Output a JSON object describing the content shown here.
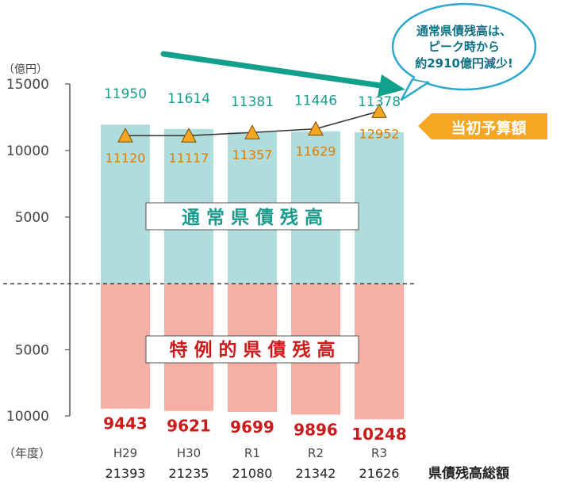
{
  "chart_data": {
    "type": "bar",
    "categories": [
      "H29",
      "H30",
      "R1",
      "R2",
      "R3"
    ],
    "axis_unit_label": "（億円）",
    "x_axis_label": "（年度）",
    "upper_ticks": [
      "15000",
      "10000",
      "5000"
    ],
    "lower_ticks": [
      "5000",
      "10000"
    ],
    "ylim_upper": [
      0,
      15000
    ],
    "ylim_lower": [
      0,
      10000
    ],
    "series": [
      {
        "name": "通常県債残高",
        "values": [
          11950,
          11614,
          11381,
          11446,
          11378
        ],
        "color": "#b0dcdc",
        "label_color": "#1a9b8c"
      },
      {
        "name": "特例的県債残高",
        "values": [
          9443,
          9621,
          9699,
          9896,
          10248
        ],
        "color": "#f4b0a4",
        "label_color": "#cc1a1a"
      },
      {
        "name": "当初予算額",
        "values": [
          11120,
          11117,
          11357,
          11629,
          12952
        ],
        "color": "#f5a623",
        "label_color": "#e07b00"
      }
    ],
    "totals_label": "県債残高総額",
    "totals": [
      21393,
      21235,
      21080,
      21342,
      21626
    ],
    "region_labels": {
      "upper": "通 常 県 債 残 高",
      "lower": "特 例 的 県 債 残 高"
    },
    "budget_tag": "当初予算額",
    "callout": [
      "通常県債残高は、",
      "ピーク時から",
      "約2910億円減少!"
    ]
  }
}
